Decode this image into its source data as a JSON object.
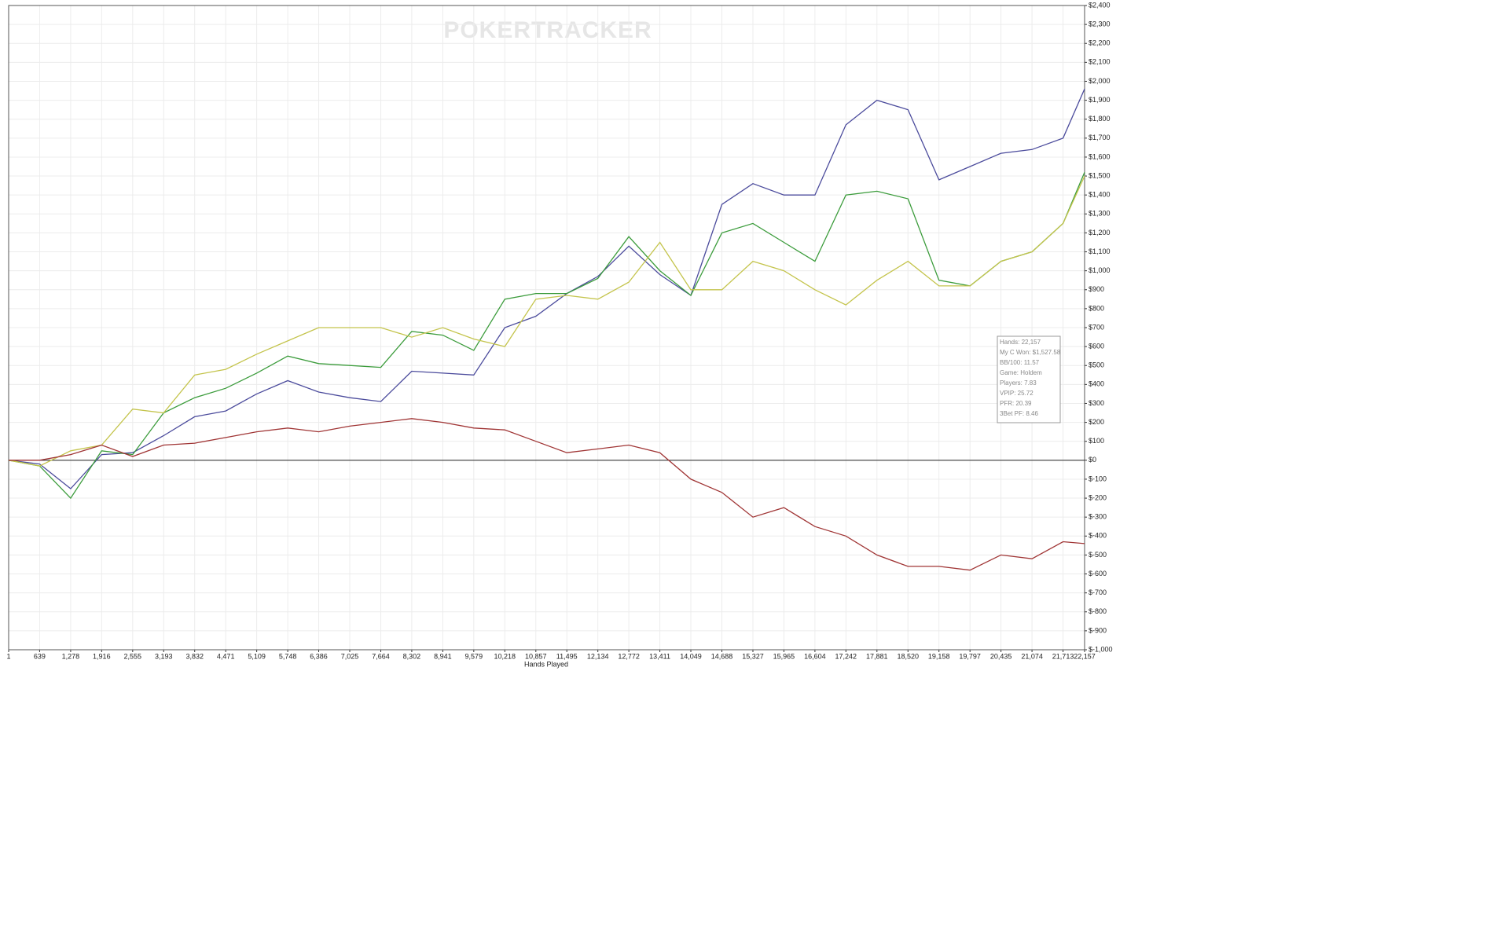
{
  "chart_data": {
    "type": "line",
    "watermark": "POKERTRACKER",
    "x_label": "Hands Played",
    "x": [
      1,
      639,
      1278,
      1916,
      2555,
      3193,
      3832,
      4471,
      5109,
      5748,
      6386,
      7025,
      7664,
      8302,
      8941,
      9579,
      10218,
      10857,
      11495,
      12134,
      12772,
      13411,
      14049,
      14688,
      15327,
      15965,
      16604,
      17242,
      17881,
      18520,
      19158,
      19797,
      20435,
      21074,
      21713,
      22157
    ],
    "series": [
      {
        "color": "#4b4b9c",
        "values": [
          0,
          -20,
          -150,
          30,
          40,
          130,
          230,
          260,
          350,
          420,
          360,
          330,
          310,
          470,
          460,
          450,
          700,
          760,
          880,
          970,
          1130,
          980,
          870,
          1350,
          1460,
          1400,
          1400,
          1770,
          1900,
          1850,
          1480,
          1550,
          1620,
          1640,
          1700,
          1960
        ]
      },
      {
        "color": "#3c9c3c",
        "values": [
          0,
          -30,
          -200,
          50,
          30,
          250,
          330,
          380,
          460,
          550,
          510,
          500,
          490,
          680,
          660,
          580,
          850,
          880,
          880,
          960,
          1180,
          1000,
          870,
          1200,
          1250,
          1150,
          1050,
          1400,
          1420,
          1380,
          950,
          920,
          1050,
          1100,
          1250,
          1520
        ]
      },
      {
        "color": "#c4c44c",
        "values": [
          0,
          -30,
          50,
          80,
          270,
          250,
          450,
          480,
          560,
          630,
          700,
          700,
          700,
          650,
          700,
          640,
          600,
          850,
          870,
          850,
          940,
          1150,
          900,
          900,
          1050,
          1000,
          900,
          820,
          950,
          1050,
          920,
          920,
          1050,
          1100,
          1250,
          1500
        ]
      },
      {
        "color": "#a03535",
        "values": [
          0,
          0,
          30,
          80,
          20,
          80,
          90,
          120,
          150,
          170,
          150,
          180,
          200,
          220,
          200,
          170,
          160,
          100,
          40,
          60,
          80,
          40,
          -100,
          -170,
          -300,
          -250,
          -350,
          -400,
          -500,
          -560,
          -560,
          -580,
          -500,
          -520,
          -430,
          -440
        ]
      }
    ],
    "xlim": [
      1,
      22157
    ],
    "xticks": [
      1,
      639,
      {
        "value": 1278,
        "label": "1,278"
      },
      {
        "value": 1916,
        "label": "1,916"
      },
      {
        "value": 2555,
        "label": "2,555"
      },
      {
        "value": 3193,
        "label": "3,193"
      },
      {
        "value": 3832,
        "label": "3,832"
      },
      {
        "value": 4471,
        "label": "4,471"
      },
      {
        "value": 5109,
        "label": "5,109"
      },
      {
        "value": 5748,
        "label": "5,748"
      },
      {
        "value": 6386,
        "label": "6,386"
      },
      {
        "value": 7025,
        "label": "7,025"
      },
      {
        "value": 7664,
        "label": "7,664"
      },
      {
        "value": 8302,
        "label": "8,302"
      },
      {
        "value": 8941,
        "label": "8,941"
      },
      {
        "value": 9579,
        "label": "9,579"
      },
      {
        "value": 10218,
        "label": "10,218"
      },
      {
        "value": 10857,
        "label": "10,857"
      },
      {
        "value": 11495,
        "label": "11,495"
      },
      {
        "value": 12134,
        "label": "12,134"
      },
      {
        "value": 12772,
        "label": "12,772"
      },
      {
        "value": 13411,
        "label": "13,411"
      },
      {
        "value": 14049,
        "label": "14,049"
      },
      {
        "value": 14688,
        "label": "14,688"
      },
      {
        "value": 15327,
        "label": "15,327"
      },
      {
        "value": 15965,
        "label": "15,965"
      },
      {
        "value": 16604,
        "label": "16,604"
      },
      {
        "value": 17242,
        "label": "17,242"
      },
      {
        "value": 17881,
        "label": "17,881"
      },
      {
        "value": 18520,
        "label": "18,520"
      },
      {
        "value": 19158,
        "label": "19,158"
      },
      {
        "value": 19797,
        "label": "19,797"
      },
      {
        "value": 20435,
        "label": "20,435"
      },
      {
        "value": 21074,
        "label": "21,074"
      },
      {
        "value": 21713,
        "label": "21,713"
      },
      {
        "value": 22157,
        "label": "22,157"
      }
    ],
    "ylim": [
      -1000,
      2400
    ],
    "yticks": [
      {
        "value": 2400,
        "label": "$2,400"
      },
      {
        "value": 2300,
        "label": "$2,300"
      },
      {
        "value": 2200,
        "label": "$2,200"
      },
      {
        "value": 2100,
        "label": "$2,100"
      },
      {
        "value": 2000,
        "label": "$2,000"
      },
      {
        "value": 1900,
        "label": "$1,900"
      },
      {
        "value": 1800,
        "label": "$1,800"
      },
      {
        "value": 1700,
        "label": "$1,700"
      },
      {
        "value": 1600,
        "label": "$1,600"
      },
      {
        "value": 1500,
        "label": "$1,500"
      },
      {
        "value": 1400,
        "label": "$1,400"
      },
      {
        "value": 1300,
        "label": "$1,300"
      },
      {
        "value": 1200,
        "label": "$1,200"
      },
      {
        "value": 1100,
        "label": "$1,100"
      },
      {
        "value": 1000,
        "label": "$1,000"
      },
      {
        "value": 900,
        "label": "$900"
      },
      {
        "value": 800,
        "label": "$800"
      },
      {
        "value": 700,
        "label": "$700"
      },
      {
        "value": 600,
        "label": "$600"
      },
      {
        "value": 500,
        "label": "$500"
      },
      {
        "value": 400,
        "label": "$400"
      },
      {
        "value": 300,
        "label": "$300"
      },
      {
        "value": 200,
        "label": "$200"
      },
      {
        "value": 100,
        "label": "$100"
      },
      {
        "value": 0,
        "label": "$0"
      },
      {
        "value": -100,
        "label": "$-100"
      },
      {
        "value": -200,
        "label": "$-200"
      },
      {
        "value": -300,
        "label": "$-300"
      },
      {
        "value": -400,
        "label": "$-400"
      },
      {
        "value": -500,
        "label": "$-500"
      },
      {
        "value": -600,
        "label": "$-600"
      },
      {
        "value": -700,
        "label": "$-700"
      },
      {
        "value": -800,
        "label": "$-800"
      },
      {
        "value": -900,
        "label": "$-900"
      },
      {
        "value": -1000,
        "label": "$-1,000"
      }
    ],
    "grid": true,
    "tooltip": [
      "Hands: 22,157",
      "My C Won: $1,527.58",
      "BB/100: 11.57",
      "Game: Holdem",
      "Players: 7.83",
      "VPIP: 25.72",
      "PFR: 20.39",
      "3Bet PF: 8.46"
    ]
  }
}
